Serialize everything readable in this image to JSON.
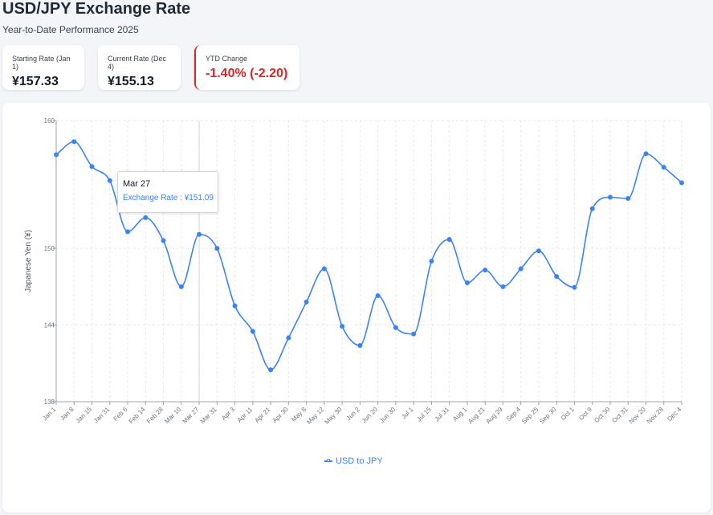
{
  "header": {
    "title": "USD/JPY Exchange Rate",
    "subtitle": "Year-to-Date Performance 2025"
  },
  "stats": {
    "start": {
      "label": "Starting Rate (Jan 1)",
      "value": "¥157.33"
    },
    "current": {
      "label": "Current Rate (Dec 4)",
      "value": "¥155.13"
    },
    "change": {
      "label": "YTD Change",
      "value": "-1.40% (-2.20)"
    }
  },
  "colors": {
    "line": "#3b82f6",
    "negative": "#dc2626",
    "grid": "#e5e7eb"
  },
  "tooltip": {
    "date": "Mar 27",
    "series_label": "Exchange Rate",
    "value": "¥151.09"
  },
  "chart_data": {
    "type": "line",
    "title": "",
    "xlabel": "",
    "ylabel": "Japanese Yen (¥)",
    "ylim": [
      138,
      160
    ],
    "yticks": [
      138,
      144,
      150,
      160
    ],
    "grid": true,
    "legend_position": "bottom-center",
    "categories": [
      "Jan 1",
      "Jan 8",
      "Jan 15",
      "Jan 31",
      "Feb 6",
      "Feb 14",
      "Feb 28",
      "Mar 10",
      "Mar 27",
      "Mar 31",
      "Apr 3",
      "Apr 11",
      "Apr 21",
      "Apr 30",
      "May 8",
      "May 12",
      "May 30",
      "Jun 2",
      "Jun 20",
      "Jun 30",
      "Jul 1",
      "Jul 15",
      "Jul 31",
      "Aug 1",
      "Aug 21",
      "Aug 29",
      "Sep 4",
      "Sep 25",
      "Sep 30",
      "Oct 1",
      "Oct 9",
      "Oct 30",
      "Oct 31",
      "Nov 20",
      "Nov 28",
      "Dec 4"
    ],
    "series": [
      {
        "name": "USD to JPY",
        "values": [
          157.33,
          158.35,
          156.4,
          155.3,
          151.3,
          152.4,
          150.6,
          147.0,
          151.09,
          150.0,
          145.5,
          143.5,
          140.5,
          143.0,
          145.8,
          148.4,
          143.9,
          142.4,
          146.3,
          143.8,
          143.3,
          149.0,
          150.7,
          147.3,
          148.3,
          147.0,
          148.4,
          149.8,
          147.8,
          146.95,
          153.1,
          154.0,
          153.9,
          157.4,
          156.35,
          155.13
        ]
      }
    ]
  }
}
